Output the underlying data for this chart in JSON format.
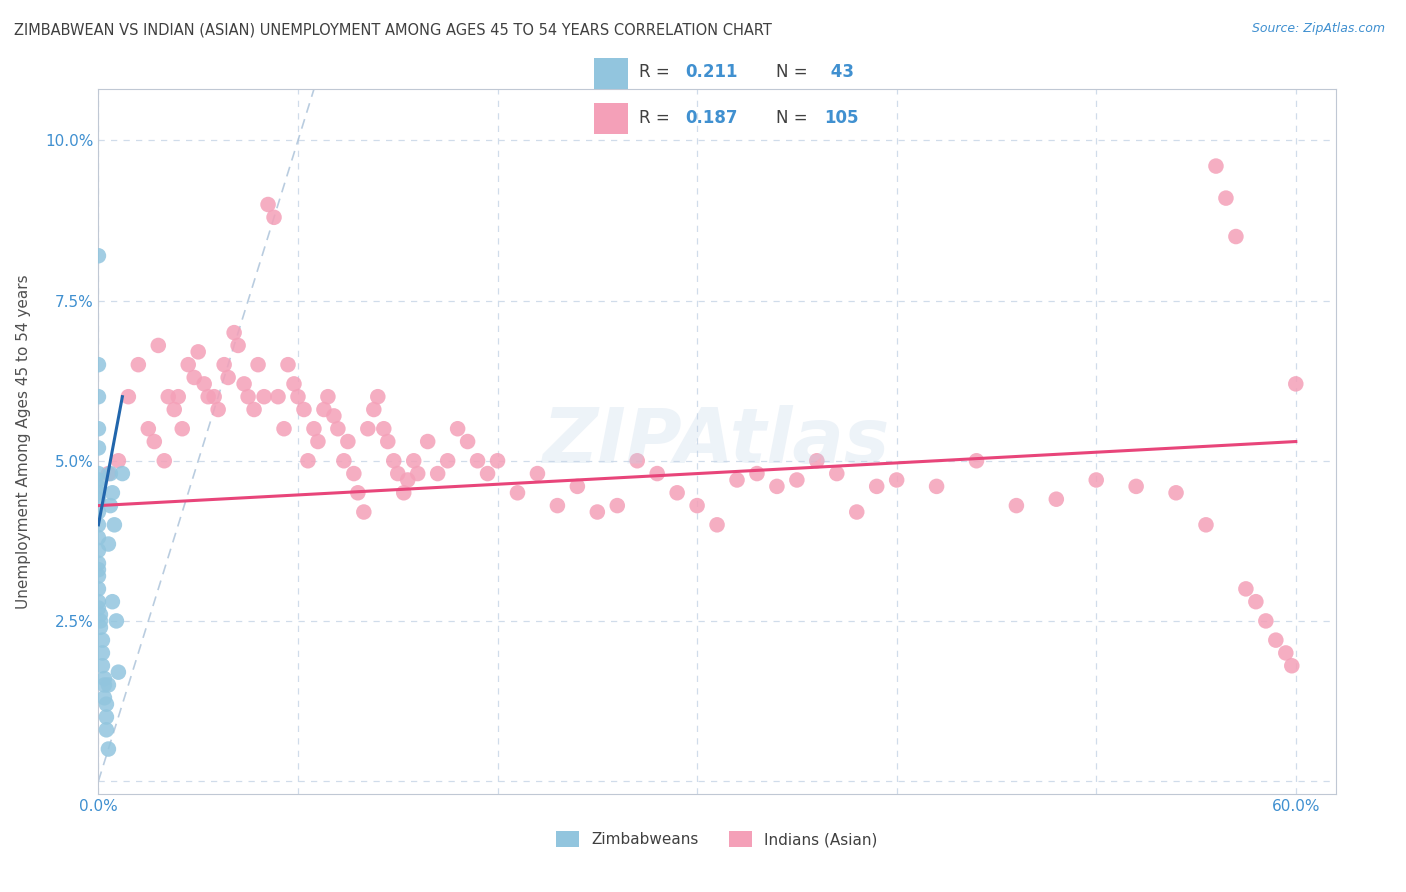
{
  "title": "ZIMBABWEAN VS INDIAN (ASIAN) UNEMPLOYMENT AMONG AGES 45 TO 54 YEARS CORRELATION CHART",
  "source": "Source: ZipAtlas.com",
  "ylabel": "Unemployment Among Ages 45 to 54 years",
  "xlim": [
    0.0,
    0.62
  ],
  "ylim": [
    -0.002,
    0.108
  ],
  "xticks": [
    0.0,
    0.1,
    0.2,
    0.3,
    0.4,
    0.5,
    0.6
  ],
  "xticklabels": [
    "0.0%",
    "",
    "",
    "",
    "",
    "",
    "60.0%"
  ],
  "yticks": [
    0.0,
    0.025,
    0.05,
    0.075,
    0.1
  ],
  "yticklabels": [
    "",
    "2.5%",
    "5.0%",
    "7.5%",
    "10.0%"
  ],
  "zim_color": "#92c5de",
  "ind_color": "#f4a0b8",
  "zim_line_color": "#2166ac",
  "ind_line_color": "#e8457a",
  "ref_line_color": "#a8c0d8",
  "background_color": "#ffffff",
  "grid_color": "#d0dcea",
  "title_color": "#404040",
  "tick_label_color": "#4090d0",
  "watermark": "ZIPAtlas",
  "r_zim": 0.211,
  "n_zim": 43,
  "r_ind": 0.187,
  "n_ind": 105,
  "zim_x": [
    0.0,
    0.0,
    0.0,
    0.0,
    0.0,
    0.0,
    0.0,
    0.0,
    0.0,
    0.0,
    0.0,
    0.0,
    0.0,
    0.0,
    0.0,
    0.0,
    0.0,
    0.0,
    0.0,
    0.0,
    0.001,
    0.001,
    0.001,
    0.002,
    0.002,
    0.002,
    0.003,
    0.003,
    0.003,
    0.004,
    0.004,
    0.004,
    0.005,
    0.005,
    0.005,
    0.006,
    0.006,
    0.007,
    0.007,
    0.008,
    0.009,
    0.01,
    0.012
  ],
  "zim_y": [
    0.082,
    0.065,
    0.06,
    0.055,
    0.052,
    0.048,
    0.047,
    0.046,
    0.045,
    0.044,
    0.042,
    0.04,
    0.038,
    0.036,
    0.034,
    0.033,
    0.032,
    0.03,
    0.028,
    0.027,
    0.026,
    0.025,
    0.024,
    0.022,
    0.02,
    0.018,
    0.016,
    0.015,
    0.013,
    0.012,
    0.01,
    0.008,
    0.037,
    0.015,
    0.005,
    0.043,
    0.048,
    0.028,
    0.045,
    0.04,
    0.025,
    0.017,
    0.048
  ],
  "ind_x": [
    0.005,
    0.01,
    0.015,
    0.02,
    0.025,
    0.028,
    0.03,
    0.033,
    0.035,
    0.038,
    0.04,
    0.042,
    0.045,
    0.048,
    0.05,
    0.053,
    0.055,
    0.058,
    0.06,
    0.063,
    0.065,
    0.068,
    0.07,
    0.073,
    0.075,
    0.078,
    0.08,
    0.083,
    0.085,
    0.088,
    0.09,
    0.093,
    0.095,
    0.098,
    0.1,
    0.103,
    0.105,
    0.108,
    0.11,
    0.113,
    0.115,
    0.118,
    0.12,
    0.123,
    0.125,
    0.128,
    0.13,
    0.133,
    0.135,
    0.138,
    0.14,
    0.143,
    0.145,
    0.148,
    0.15,
    0.153,
    0.155,
    0.158,
    0.16,
    0.165,
    0.17,
    0.175,
    0.18,
    0.185,
    0.19,
    0.195,
    0.2,
    0.21,
    0.22,
    0.23,
    0.24,
    0.25,
    0.26,
    0.27,
    0.28,
    0.29,
    0.3,
    0.31,
    0.32,
    0.33,
    0.34,
    0.35,
    0.36,
    0.37,
    0.38,
    0.39,
    0.4,
    0.42,
    0.44,
    0.46,
    0.48,
    0.5,
    0.52,
    0.54,
    0.555,
    0.56,
    0.565,
    0.57,
    0.575,
    0.58,
    0.585,
    0.59,
    0.595,
    0.598,
    0.6
  ],
  "ind_y": [
    0.048,
    0.05,
    0.06,
    0.065,
    0.055,
    0.053,
    0.068,
    0.05,
    0.06,
    0.058,
    0.06,
    0.055,
    0.065,
    0.063,
    0.067,
    0.062,
    0.06,
    0.06,
    0.058,
    0.065,
    0.063,
    0.07,
    0.068,
    0.062,
    0.06,
    0.058,
    0.065,
    0.06,
    0.09,
    0.088,
    0.06,
    0.055,
    0.065,
    0.062,
    0.06,
    0.058,
    0.05,
    0.055,
    0.053,
    0.058,
    0.06,
    0.057,
    0.055,
    0.05,
    0.053,
    0.048,
    0.045,
    0.042,
    0.055,
    0.058,
    0.06,
    0.055,
    0.053,
    0.05,
    0.048,
    0.045,
    0.047,
    0.05,
    0.048,
    0.053,
    0.048,
    0.05,
    0.055,
    0.053,
    0.05,
    0.048,
    0.05,
    0.045,
    0.048,
    0.043,
    0.046,
    0.042,
    0.043,
    0.05,
    0.048,
    0.045,
    0.043,
    0.04,
    0.047,
    0.048,
    0.046,
    0.047,
    0.05,
    0.048,
    0.042,
    0.046,
    0.047,
    0.046,
    0.05,
    0.043,
    0.044,
    0.047,
    0.046,
    0.045,
    0.04,
    0.096,
    0.091,
    0.085,
    0.03,
    0.028,
    0.025,
    0.022,
    0.02,
    0.018,
    0.062
  ]
}
